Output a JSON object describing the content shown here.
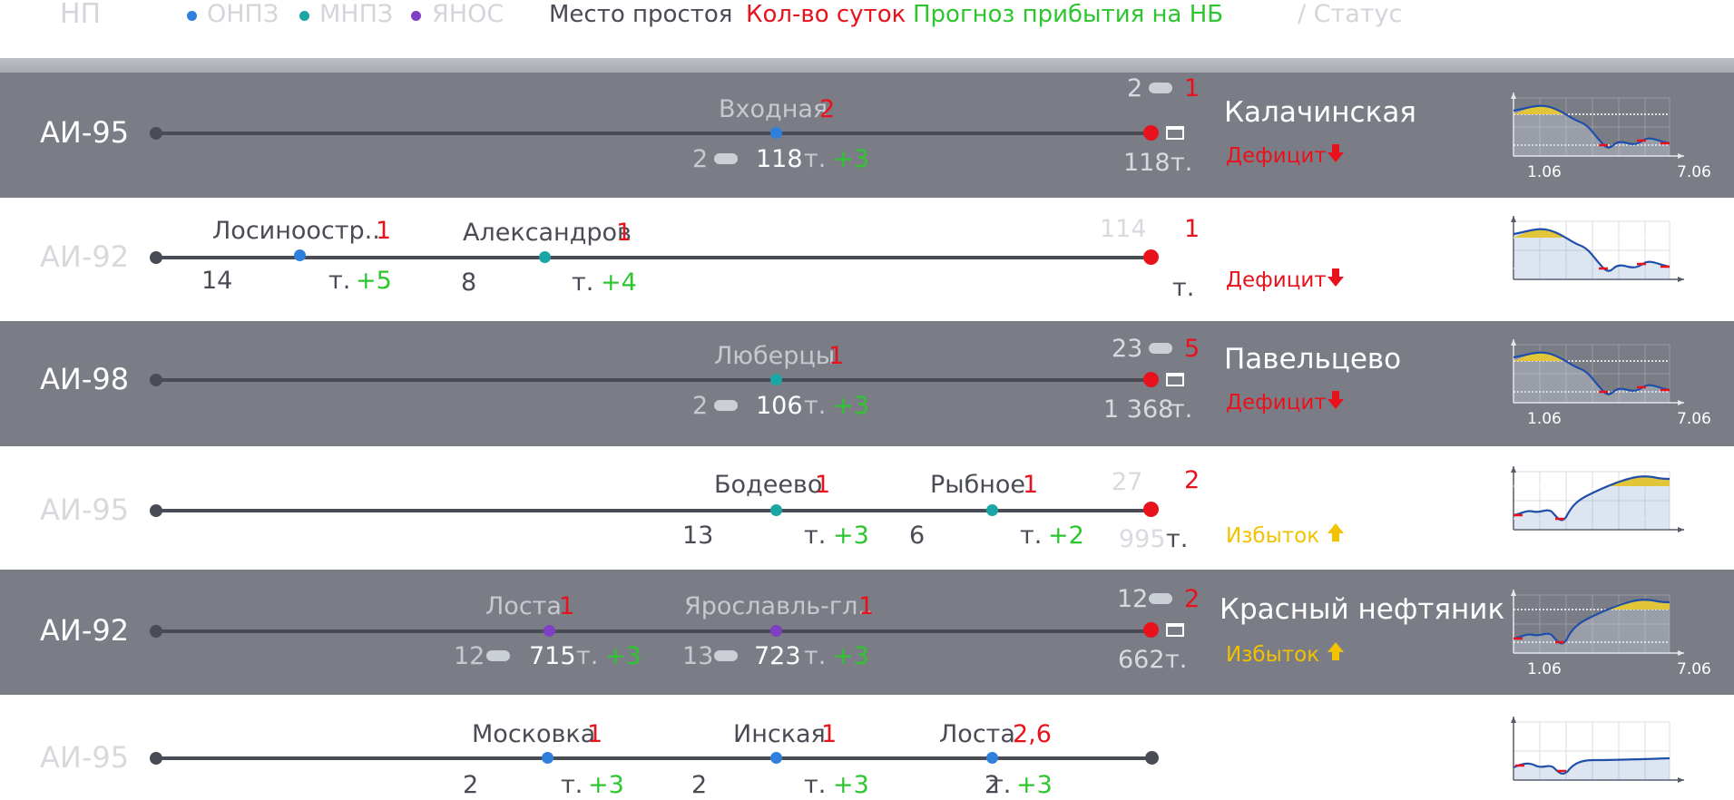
{
  "header": {
    "np": "НП",
    "legend": [
      {
        "label": "ОНПЗ",
        "color": "#2f80dc"
      },
      {
        "label": "МНПЗ",
        "color": "#19a6a4"
      },
      {
        "label": "ЯНОС",
        "color": "#7f3fc4"
      }
    ],
    "place_label": "Место простоя",
    "days_label": "Кол-во суток",
    "forecast_label": "Прогноз прибытия на НБ",
    "status_label": "/ Статус"
  },
  "colors": {
    "onpz": "#2f80dc",
    "mnpz": "#19a6a4",
    "yanos": "#7f3fc4",
    "deficit": "#e8121d",
    "surplus": "#f2c200",
    "endpoint": "#e8121d"
  },
  "rows": [
    {
      "fuel": "АИ-95",
      "dark": true,
      "stops": [
        {
          "name": "Входная",
          "days": "2",
          "count": "2",
          "tons": "118",
          "tunit": "т.",
          "plus": "+3",
          "refinery": "onpz"
        }
      ],
      "end": {
        "count": "2",
        "days": "1",
        "tons": "118",
        "tunit": "т."
      },
      "station": "Калачинская",
      "status": "Дефицит",
      "status_icon": "arrow-down-icon",
      "trend": "deficit",
      "dates": [
        "1.06",
        "7.06"
      ]
    },
    {
      "fuel": "АИ-92",
      "dark": false,
      "stops": [
        {
          "name": "Лосиноостр...",
          "days": "1",
          "count": "14",
          "tunit": "т.",
          "plus": "+5",
          "refinery": "onpz"
        },
        {
          "name": "Александров",
          "days": "1",
          "count": "8",
          "tunit": "т.",
          "plus": "+4",
          "refinery": "mnpz"
        }
      ],
      "end": {
        "count": "114",
        "days": "1",
        "tunit": "т."
      },
      "station": "",
      "status": "Дефицит",
      "status_icon": "arrow-down-icon",
      "trend": "deficit",
      "dates": []
    },
    {
      "fuel": "АИ-98",
      "dark": true,
      "stops": [
        {
          "name": "Люберцы",
          "days": "1",
          "count": "2",
          "tons": "106",
          "tunit": "т.",
          "plus": "+3",
          "refinery": "mnpz"
        }
      ],
      "end": {
        "count": "23",
        "days": "5",
        "tons": "1 368",
        "tunit": "т."
      },
      "station": "Павельцево",
      "status": "Дефицит",
      "status_icon": "arrow-down-icon",
      "trend": "deficit",
      "dates": [
        "1.06",
        "7.06"
      ]
    },
    {
      "fuel": "АИ-95",
      "dark": false,
      "stops": [
        {
          "name": "Бодеево",
          "days": "1",
          "count": "13",
          "tunit": "т.",
          "plus": "+3",
          "refinery": "mnpz"
        },
        {
          "name": "Рыбное",
          "days": "1",
          "count": "6",
          "tunit": "т.",
          "plus": "+2",
          "refinery": "mnpz"
        }
      ],
      "end": {
        "count": "27",
        "days": "2",
        "tons": "995",
        "tunit": "т."
      },
      "station": "",
      "status": "Избыток",
      "status_icon": "arrow-up-icon",
      "trend": "surplus",
      "dates": []
    },
    {
      "fuel": "АИ-92",
      "dark": true,
      "stops": [
        {
          "name": "Лоста",
          "days": "1",
          "count": "12",
          "tons": "715",
          "tunit": "т.",
          "plus": "+3",
          "refinery": "yanos"
        },
        {
          "name": "Ярославль-гл..",
          "days": "1",
          "count": "13",
          "tons": "723",
          "tunit": "т.",
          "plus": "+3",
          "refinery": "yanos"
        }
      ],
      "end": {
        "count": "12",
        "days": "2",
        "tons": "662",
        "tunit": "т."
      },
      "station": "Красный нефтяник",
      "status": "Избыток",
      "status_icon": "arrow-up-icon",
      "trend": "surplus",
      "dates": [
        "1.06",
        "7.06"
      ]
    },
    {
      "fuel": "АИ-95",
      "dark": false,
      "stops": [
        {
          "name": "Московка",
          "days": "1",
          "count": "2",
          "tunit": "т.",
          "plus": "+3",
          "refinery": "onpz"
        },
        {
          "name": "Инская",
          "days": "1",
          "count": "2",
          "tunit": "т.",
          "plus": "+3",
          "refinery": "onpz"
        },
        {
          "name": "Лоста",
          "days": "2,6",
          "count": "2",
          "tunit": "т.",
          "plus": "+3",
          "refinery": "onpz"
        }
      ],
      "end": {},
      "station": "",
      "status": "",
      "status_icon": "",
      "trend": "flat",
      "dates": []
    }
  ]
}
